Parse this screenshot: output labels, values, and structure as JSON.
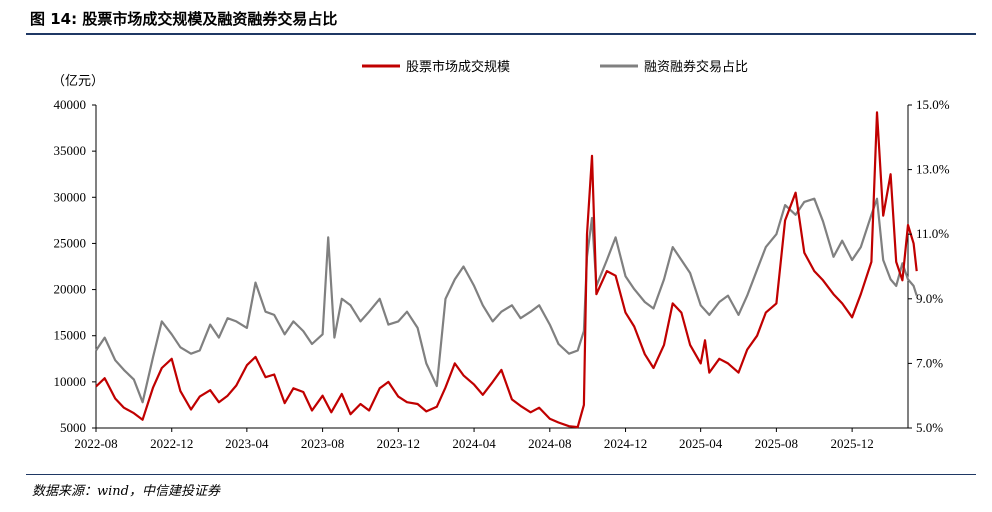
{
  "figure": {
    "title": "图 14: 股票市场成交规模及融资融券交易占比",
    "source": "数据来源：wind，中信建投证券"
  },
  "chart_data": {
    "type": "line",
    "y_unit_label": "（亿元）",
    "legend_position": "top-center",
    "grid": false,
    "x_ticks": [
      "2022-08",
      "2022-12",
      "2023-04",
      "2023-08",
      "2023-12",
      "2024-04",
      "2024-08",
      "2024-12",
      "2025-04",
      "2025-08",
      "2025-12"
    ],
    "x_range": [
      "2022-08",
      "2026-03"
    ],
    "y_left": {
      "range": [
        5000,
        40000
      ],
      "ticks": [
        "40000",
        "35000",
        "30000",
        "25000",
        "20000",
        "15000",
        "10000",
        "5000"
      ]
    },
    "y_right": {
      "range": [
        5.0,
        15.0
      ],
      "ticks": [
        "15.0%",
        "13.0%",
        "11.0%",
        "9.0%",
        "7.0%",
        "5.0%"
      ]
    },
    "series": [
      {
        "name": "股票市场成交规模",
        "color": "#c00000",
        "axis": "left",
        "points": [
          [
            "2022-08-01",
            9500
          ],
          [
            "2022-08-15",
            10400
          ],
          [
            "2022-09-01",
            8200
          ],
          [
            "2022-09-15",
            7200
          ],
          [
            "2022-10-01",
            6600
          ],
          [
            "2022-10-15",
            5900
          ],
          [
            "2022-11-01",
            9400
          ],
          [
            "2022-11-15",
            11500
          ],
          [
            "2022-12-01",
            12500
          ],
          [
            "2022-12-15",
            9000
          ],
          [
            "2023-01-01",
            7000
          ],
          [
            "2023-01-15",
            8400
          ],
          [
            "2023-02-01",
            9100
          ],
          [
            "2023-02-15",
            7800
          ],
          [
            "2023-03-01",
            8500
          ],
          [
            "2023-03-15",
            9600
          ],
          [
            "2023-04-01",
            11800
          ],
          [
            "2023-04-15",
            12700
          ],
          [
            "2023-05-01",
            10500
          ],
          [
            "2023-05-15",
            10800
          ],
          [
            "2023-06-01",
            7700
          ],
          [
            "2023-06-15",
            9300
          ],
          [
            "2023-07-01",
            8900
          ],
          [
            "2023-07-15",
            6900
          ],
          [
            "2023-08-01",
            8500
          ],
          [
            "2023-08-15",
            6700
          ],
          [
            "2023-09-01",
            8700
          ],
          [
            "2023-09-15",
            6500
          ],
          [
            "2023-10-01",
            7600
          ],
          [
            "2023-10-15",
            6900
          ],
          [
            "2023-11-01",
            9300
          ],
          [
            "2023-11-15",
            10000
          ],
          [
            "2023-12-01",
            8400
          ],
          [
            "2023-12-15",
            7800
          ],
          [
            "2024-01-01",
            7600
          ],
          [
            "2024-01-15",
            6800
          ],
          [
            "2024-02-01",
            7300
          ],
          [
            "2024-02-15",
            9400
          ],
          [
            "2024-03-01",
            12000
          ],
          [
            "2024-03-15",
            10700
          ],
          [
            "2024-04-01",
            9700
          ],
          [
            "2024-04-15",
            8600
          ],
          [
            "2024-05-01",
            10000
          ],
          [
            "2024-05-15",
            11300
          ],
          [
            "2024-06-01",
            8100
          ],
          [
            "2024-06-15",
            7400
          ],
          [
            "2024-07-01",
            6700
          ],
          [
            "2024-07-15",
            7200
          ],
          [
            "2024-08-01",
            6000
          ],
          [
            "2024-08-15",
            5600
          ],
          [
            "2024-09-01",
            5200
          ],
          [
            "2024-09-15",
            5100
          ],
          [
            "2024-09-25",
            7500
          ],
          [
            "2024-09-30",
            26000
          ],
          [
            "2024-10-08",
            34500
          ],
          [
            "2024-10-15",
            19500
          ],
          [
            "2024-11-01",
            22000
          ],
          [
            "2024-11-15",
            21500
          ],
          [
            "2024-12-01",
            17500
          ],
          [
            "2024-12-15",
            16000
          ],
          [
            "2025-01-01",
            13000
          ],
          [
            "2025-01-15",
            11500
          ],
          [
            "2025-02-01",
            14000
          ],
          [
            "2025-02-15",
            18500
          ],
          [
            "2025-03-01",
            17500
          ],
          [
            "2025-03-15",
            14000
          ],
          [
            "2025-04-01",
            12000
          ],
          [
            "2025-04-08",
            14500
          ],
          [
            "2025-04-15",
            11000
          ],
          [
            "2025-05-01",
            12500
          ],
          [
            "2025-05-15",
            12000
          ],
          [
            "2025-06-01",
            11000
          ],
          [
            "2025-06-15",
            13500
          ],
          [
            "2025-07-01",
            15000
          ],
          [
            "2025-07-15",
            17500
          ],
          [
            "2025-08-01",
            18500
          ],
          [
            "2025-08-15",
            27500
          ],
          [
            "2025-09-01",
            30500
          ],
          [
            "2025-09-15",
            24000
          ],
          [
            "2025-10-01",
            22000
          ],
          [
            "2025-10-15",
            21000
          ],
          [
            "2025-11-01",
            19500
          ],
          [
            "2025-11-15",
            18500
          ],
          [
            "2025-12-01",
            17000
          ],
          [
            "2025-12-15",
            19500
          ],
          [
            "2026-01-01",
            23000
          ],
          [
            "2026-01-10",
            39200
          ],
          [
            "2026-01-20",
            28000
          ],
          [
            "2026-02-01",
            32500
          ],
          [
            "2026-02-10",
            23000
          ],
          [
            "2026-02-20",
            21000
          ],
          [
            "2026-03-01",
            27000
          ],
          [
            "2026-03-10",
            25000
          ],
          [
            "2026-03-15",
            22000
          ]
        ]
      },
      {
        "name": "融资融券交易占比",
        "color": "#808080",
        "axis": "right",
        "points": [
          [
            "2022-08-01",
            7.4
          ],
          [
            "2022-08-15",
            7.8
          ],
          [
            "2022-09-01",
            7.1
          ],
          [
            "2022-09-15",
            6.8
          ],
          [
            "2022-10-01",
            6.5
          ],
          [
            "2022-10-15",
            5.8
          ],
          [
            "2022-11-01",
            7.2
          ],
          [
            "2022-11-15",
            8.3
          ],
          [
            "2022-12-01",
            7.9
          ],
          [
            "2022-12-15",
            7.5
          ],
          [
            "2023-01-01",
            7.3
          ],
          [
            "2023-01-15",
            7.4
          ],
          [
            "2023-02-01",
            8.2
          ],
          [
            "2023-02-15",
            7.8
          ],
          [
            "2023-03-01",
            8.4
          ],
          [
            "2023-03-15",
            8.3
          ],
          [
            "2023-04-01",
            8.1
          ],
          [
            "2023-04-15",
            9.5
          ],
          [
            "2023-05-01",
            8.6
          ],
          [
            "2023-05-15",
            8.5
          ],
          [
            "2023-06-01",
            7.9
          ],
          [
            "2023-06-15",
            8.3
          ],
          [
            "2023-07-01",
            8.0
          ],
          [
            "2023-07-15",
            7.6
          ],
          [
            "2023-08-01",
            7.9
          ],
          [
            "2023-08-10",
            10.9
          ],
          [
            "2023-08-20",
            7.8
          ],
          [
            "2023-09-01",
            9.0
          ],
          [
            "2023-09-15",
            8.8
          ],
          [
            "2023-10-01",
            8.3
          ],
          [
            "2023-10-15",
            8.6
          ],
          [
            "2023-11-01",
            9.0
          ],
          [
            "2023-11-15",
            8.2
          ],
          [
            "2023-12-01",
            8.3
          ],
          [
            "2023-12-15",
            8.6
          ],
          [
            "2024-01-01",
            8.1
          ],
          [
            "2024-01-15",
            7.0
          ],
          [
            "2024-02-01",
            6.3
          ],
          [
            "2024-02-15",
            9.0
          ],
          [
            "2024-03-01",
            9.6
          ],
          [
            "2024-03-15",
            10.0
          ],
          [
            "2024-04-01",
            9.4
          ],
          [
            "2024-04-15",
            8.8
          ],
          [
            "2024-05-01",
            8.3
          ],
          [
            "2024-05-15",
            8.6
          ],
          [
            "2024-06-01",
            8.8
          ],
          [
            "2024-06-15",
            8.4
          ],
          [
            "2024-07-01",
            8.6
          ],
          [
            "2024-07-15",
            8.8
          ],
          [
            "2024-08-01",
            8.2
          ],
          [
            "2024-08-15",
            7.6
          ],
          [
            "2024-09-01",
            7.3
          ],
          [
            "2024-09-15",
            7.4
          ],
          [
            "2024-09-25",
            8.0
          ],
          [
            "2024-09-30",
            10.3
          ],
          [
            "2024-10-08",
            11.5
          ],
          [
            "2024-10-15",
            9.4
          ],
          [
            "2024-11-01",
            10.2
          ],
          [
            "2024-11-15",
            10.9
          ],
          [
            "2024-12-01",
            9.7
          ],
          [
            "2024-12-15",
            9.3
          ],
          [
            "2025-01-01",
            8.9
          ],
          [
            "2025-01-15",
            8.7
          ],
          [
            "2025-02-01",
            9.6
          ],
          [
            "2025-02-15",
            10.6
          ],
          [
            "2025-03-01",
            10.2
          ],
          [
            "2025-03-15",
            9.8
          ],
          [
            "2025-04-01",
            8.8
          ],
          [
            "2025-04-15",
            8.5
          ],
          [
            "2025-05-01",
            8.9
          ],
          [
            "2025-05-15",
            9.1
          ],
          [
            "2025-06-01",
            8.5
          ],
          [
            "2025-06-15",
            9.1
          ],
          [
            "2025-07-01",
            9.9
          ],
          [
            "2025-07-15",
            10.6
          ],
          [
            "2025-08-01",
            11.0
          ],
          [
            "2025-08-15",
            11.9
          ],
          [
            "2025-09-01",
            11.6
          ],
          [
            "2025-09-15",
            12.0
          ],
          [
            "2025-10-01",
            12.1
          ],
          [
            "2025-10-15",
            11.4
          ],
          [
            "2025-11-01",
            10.3
          ],
          [
            "2025-11-15",
            10.8
          ],
          [
            "2025-12-01",
            10.2
          ],
          [
            "2025-12-15",
            10.6
          ],
          [
            "2026-01-01",
            11.6
          ],
          [
            "2026-01-10",
            12.1
          ],
          [
            "2026-01-20",
            10.2
          ],
          [
            "2026-02-01",
            9.6
          ],
          [
            "2026-02-10",
            9.4
          ],
          [
            "2026-02-20",
            10.1
          ],
          [
            "2026-03-01",
            9.6
          ],
          [
            "2026-03-10",
            9.4
          ],
          [
            "2026-03-15",
            9.1
          ]
        ]
      }
    ]
  }
}
